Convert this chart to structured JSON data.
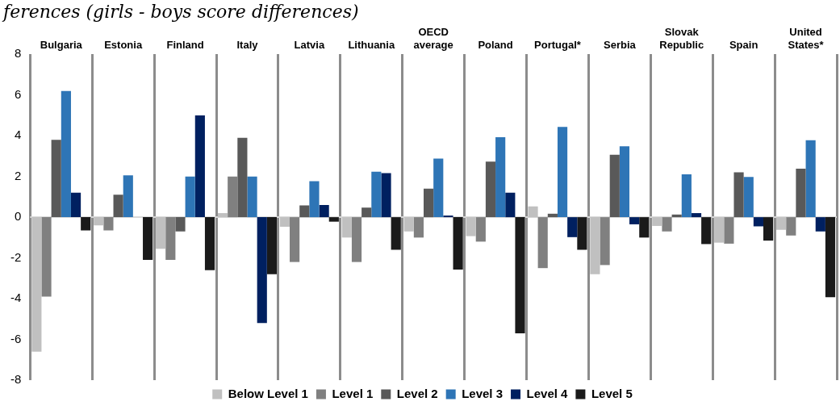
{
  "chart_data": {
    "type": "bar",
    "title": "ferences (girls - boys score differences)",
    "categories": [
      "Bulgaria",
      "Estonia",
      "Finland",
      "Italy",
      "Latvia",
      "Lithuania",
      "OECD average",
      "Poland",
      "Portugal*",
      "Serbia",
      "Slovak Republic",
      "Spain",
      "United States*"
    ],
    "series": [
      {
        "name": "Below Level 1",
        "color": "#c0c0c0",
        "values": [
          -6.6,
          -0.4,
          -1.55,
          0.2,
          -0.47,
          -1.0,
          -0.7,
          -0.93,
          0.53,
          -2.8,
          -0.43,
          -1.25,
          -0.62
        ]
      },
      {
        "name": "Level 1",
        "color": "#808080",
        "values": [
          -3.9,
          -0.65,
          -2.1,
          2.0,
          -2.2,
          -2.2,
          -1.0,
          -1.2,
          -2.5,
          -2.35,
          -0.7,
          -1.3,
          -0.9
        ]
      },
      {
        "name": "Level 2",
        "color": "#595959",
        "values": [
          3.8,
          1.1,
          -0.7,
          3.9,
          0.58,
          0.47,
          1.4,
          2.73,
          0.17,
          3.06,
          0.13,
          2.2,
          2.38
        ]
      },
      {
        "name": "Level 3",
        "color": "#2e75b6",
        "values": [
          6.2,
          2.05,
          2.0,
          2.0,
          1.77,
          2.23,
          2.88,
          3.93,
          4.43,
          3.48,
          2.1,
          1.98,
          3.78
        ]
      },
      {
        "name": "Level 4",
        "color": "#002060",
        "values": [
          1.2,
          null,
          5.0,
          -5.2,
          0.6,
          2.16,
          0.08,
          1.2,
          -0.98,
          -0.35,
          0.2,
          -0.45,
          -0.7
        ]
      },
      {
        "name": "Level 5",
        "color": "#1a1a1a",
        "values": [
          -0.65,
          -2.1,
          -2.6,
          -2.8,
          -0.22,
          -1.6,
          -2.57,
          -5.7,
          -1.6,
          -1.0,
          -1.32,
          -1.15,
          -3.93
        ]
      }
    ],
    "ylim": [
      -8,
      8
    ],
    "yticks": [
      -8,
      -6,
      -4,
      -2,
      0,
      2,
      4,
      6,
      8
    ],
    "grid": "x",
    "legend": "bottom"
  }
}
